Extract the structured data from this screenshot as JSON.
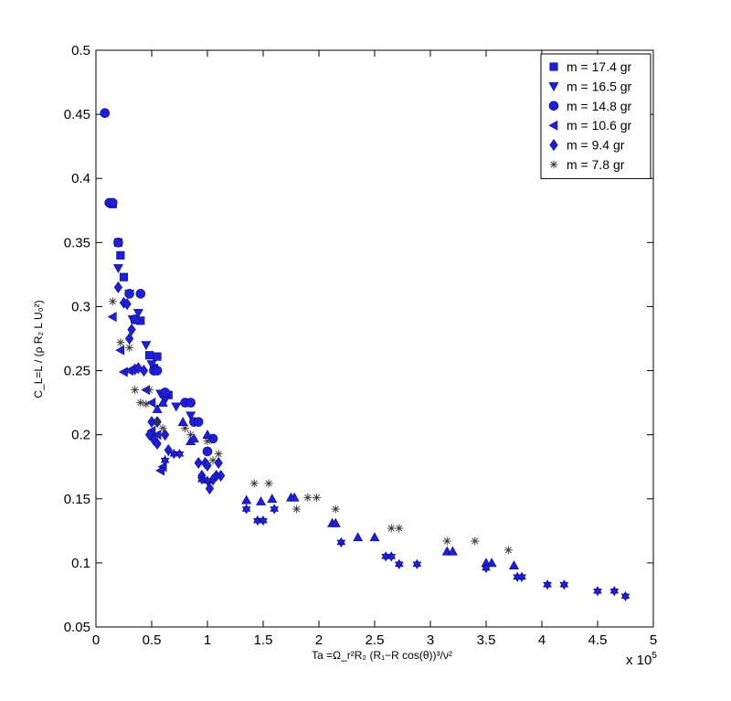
{
  "chart_data": {
    "type": "scatter",
    "xlabel": "Ta =Ω_r²R₂ (R₁−R cos(θ))³/ν²",
    "ylabel": "C_L=L / (ρ R₂ L U₀²)",
    "x_multiplier_label": "x 10",
    "x_multiplier_exponent": "5",
    "xlim": [
      0,
      5
    ],
    "ylim": [
      0.05,
      0.5
    ],
    "xticks": [
      "0",
      "0.5",
      "1",
      "1.5",
      "2",
      "2.5",
      "3",
      "3.5",
      "4",
      "4.5",
      "5"
    ],
    "yticks": [
      "0.05",
      "0.1",
      "0.15",
      "0.2",
      "0.25",
      "0.3",
      "0.35",
      "0.4",
      "0.45",
      "0.5"
    ],
    "legend_position": "top-right",
    "marker_color": "#1f1fd6",
    "star_color": "#333333",
    "series": [
      {
        "name": "m = 17.4 gr",
        "marker": "square",
        "points": [
          [
            0.15,
            0.38
          ],
          [
            0.2,
            0.35
          ],
          [
            0.25,
            0.323
          ],
          [
            0.35,
            0.29
          ],
          [
            0.48,
            0.262
          ],
          [
            0.52,
            0.252
          ],
          [
            0.62,
            0.232
          ],
          [
            0.65,
            0.231
          ],
          [
            0.22,
            0.34
          ],
          [
            0.55,
            0.261
          ],
          [
            0.4,
            0.289
          ]
        ]
      },
      {
        "name": "m = 16.5 gr",
        "marker": "triangle-down",
        "points": [
          [
            0.2,
            0.33
          ],
          [
            0.3,
            0.31
          ],
          [
            0.38,
            0.295
          ],
          [
            0.45,
            0.27
          ],
          [
            0.5,
            0.255
          ],
          [
            0.58,
            0.232
          ],
          [
            0.62,
            0.227
          ],
          [
            0.85,
            0.215
          ],
          [
            0.72,
            0.222
          ],
          [
            0.33,
            0.29
          ]
        ]
      },
      {
        "name": "m = 14.8 gr",
        "marker": "circle",
        "points": [
          [
            0.08,
            0.451
          ],
          [
            0.12,
            0.381
          ],
          [
            0.15,
            0.381
          ],
          [
            0.2,
            0.35
          ],
          [
            0.3,
            0.31
          ],
          [
            0.4,
            0.31
          ],
          [
            0.35,
            0.29
          ],
          [
            0.52,
            0.25
          ],
          [
            0.55,
            0.25
          ],
          [
            0.62,
            0.233
          ],
          [
            0.8,
            0.225
          ],
          [
            0.85,
            0.225
          ],
          [
            0.88,
            0.21
          ],
          [
            0.92,
            0.21
          ],
          [
            1.0,
            0.187
          ],
          [
            1.05,
            0.197
          ]
        ]
      },
      {
        "name": "m = 10.6 gr",
        "marker": "triangle-left",
        "points": [
          [
            0.15,
            0.292
          ],
          [
            0.22,
            0.266
          ],
          [
            0.25,
            0.249
          ],
          [
            0.3,
            0.25
          ],
          [
            0.45,
            0.235
          ],
          [
            0.5,
            0.225
          ],
          [
            0.6,
            0.175
          ],
          [
            0.58,
            0.172
          ],
          [
            0.55,
            0.2
          ],
          [
            0.5,
            0.203
          ]
        ]
      },
      {
        "name": "m = 9.4 gr",
        "marker": "diamond",
        "points": [
          [
            0.2,
            0.315
          ],
          [
            0.25,
            0.303
          ],
          [
            0.28,
            0.302
          ],
          [
            0.32,
            0.282
          ],
          [
            0.3,
            0.275
          ],
          [
            0.35,
            0.251
          ],
          [
            0.38,
            0.252
          ],
          [
            0.43,
            0.25
          ],
          [
            0.5,
            0.21
          ],
          [
            0.55,
            0.21
          ],
          [
            0.48,
            0.2
          ],
          [
            0.52,
            0.196
          ],
          [
            0.55,
            0.193
          ],
          [
            0.62,
            0.2
          ],
          [
            0.65,
            0.188
          ],
          [
            0.92,
            0.178
          ],
          [
            0.98,
            0.178
          ],
          [
            1.0,
            0.176
          ],
          [
            1.05,
            0.165
          ],
          [
            1.08,
            0.168
          ],
          [
            1.12,
            0.168
          ],
          [
            1.1,
            0.178
          ],
          [
            1.02,
            0.158
          ],
          [
            0.95,
            0.168
          ]
        ]
      },
      {
        "name": "m = 7.8 gr",
        "marker": "star",
        "points": [
          [
            0.15,
            0.304
          ],
          [
            0.22,
            0.272
          ],
          [
            0.3,
            0.268
          ],
          [
            0.45,
            0.224
          ],
          [
            0.48,
            0.235
          ],
          [
            0.55,
            0.21
          ],
          [
            0.6,
            0.205
          ],
          [
            0.85,
            0.2
          ],
          [
            1.0,
            0.195
          ],
          [
            1.05,
            0.18
          ],
          [
            1.1,
            0.185
          ],
          [
            1.42,
            0.162
          ],
          [
            1.55,
            0.162
          ],
          [
            1.8,
            0.142
          ],
          [
            1.9,
            0.151
          ],
          [
            1.98,
            0.151
          ],
          [
            2.15,
            0.142
          ],
          [
            2.65,
            0.127
          ],
          [
            2.72,
            0.127
          ],
          [
            3.15,
            0.117
          ],
          [
            3.4,
            0.117
          ],
          [
            3.7,
            0.11
          ],
          [
            0.35,
            0.235
          ],
          [
            0.4,
            0.225
          ],
          [
            0.8,
            0.205
          ]
        ]
      },
      {
        "name": "",
        "marker": "triangle-up",
        "points": [
          [
            0.55,
            0.22
          ],
          [
            0.6,
            0.225
          ],
          [
            0.78,
            0.21
          ],
          [
            0.85,
            0.195
          ],
          [
            0.88,
            0.197
          ],
          [
            1.0,
            0.2
          ],
          [
            1.35,
            0.149
          ],
          [
            1.48,
            0.148
          ],
          [
            1.58,
            0.15
          ],
          [
            1.75,
            0.151
          ],
          [
            1.78,
            0.151
          ],
          [
            2.12,
            0.131
          ],
          [
            2.15,
            0.131
          ],
          [
            2.35,
            0.12
          ],
          [
            2.5,
            0.12
          ],
          [
            3.15,
            0.109
          ],
          [
            3.2,
            0.109
          ],
          [
            3.5,
            0.1
          ],
          [
            3.55,
            0.1
          ],
          [
            3.75,
            0.098
          ]
        ]
      },
      {
        "name": "",
        "marker": "hexagram",
        "points": [
          [
            0.7,
            0.185
          ],
          [
            0.75,
            0.185
          ],
          [
            0.95,
            0.165
          ],
          [
            1.0,
            0.164
          ],
          [
            1.35,
            0.142
          ],
          [
            1.45,
            0.133
          ],
          [
            1.5,
            0.133
          ],
          [
            1.6,
            0.142
          ],
          [
            2.2,
            0.116
          ],
          [
            2.6,
            0.105
          ],
          [
            2.65,
            0.105
          ],
          [
            2.72,
            0.099
          ],
          [
            2.88,
            0.099
          ],
          [
            3.5,
            0.096
          ],
          [
            3.78,
            0.089
          ],
          [
            3.82,
            0.089
          ],
          [
            4.05,
            0.083
          ],
          [
            4.2,
            0.083
          ],
          [
            4.5,
            0.078
          ],
          [
            4.65,
            0.078
          ],
          [
            4.75,
            0.074
          ],
          [
            0.62,
            0.18
          ]
        ]
      }
    ]
  }
}
